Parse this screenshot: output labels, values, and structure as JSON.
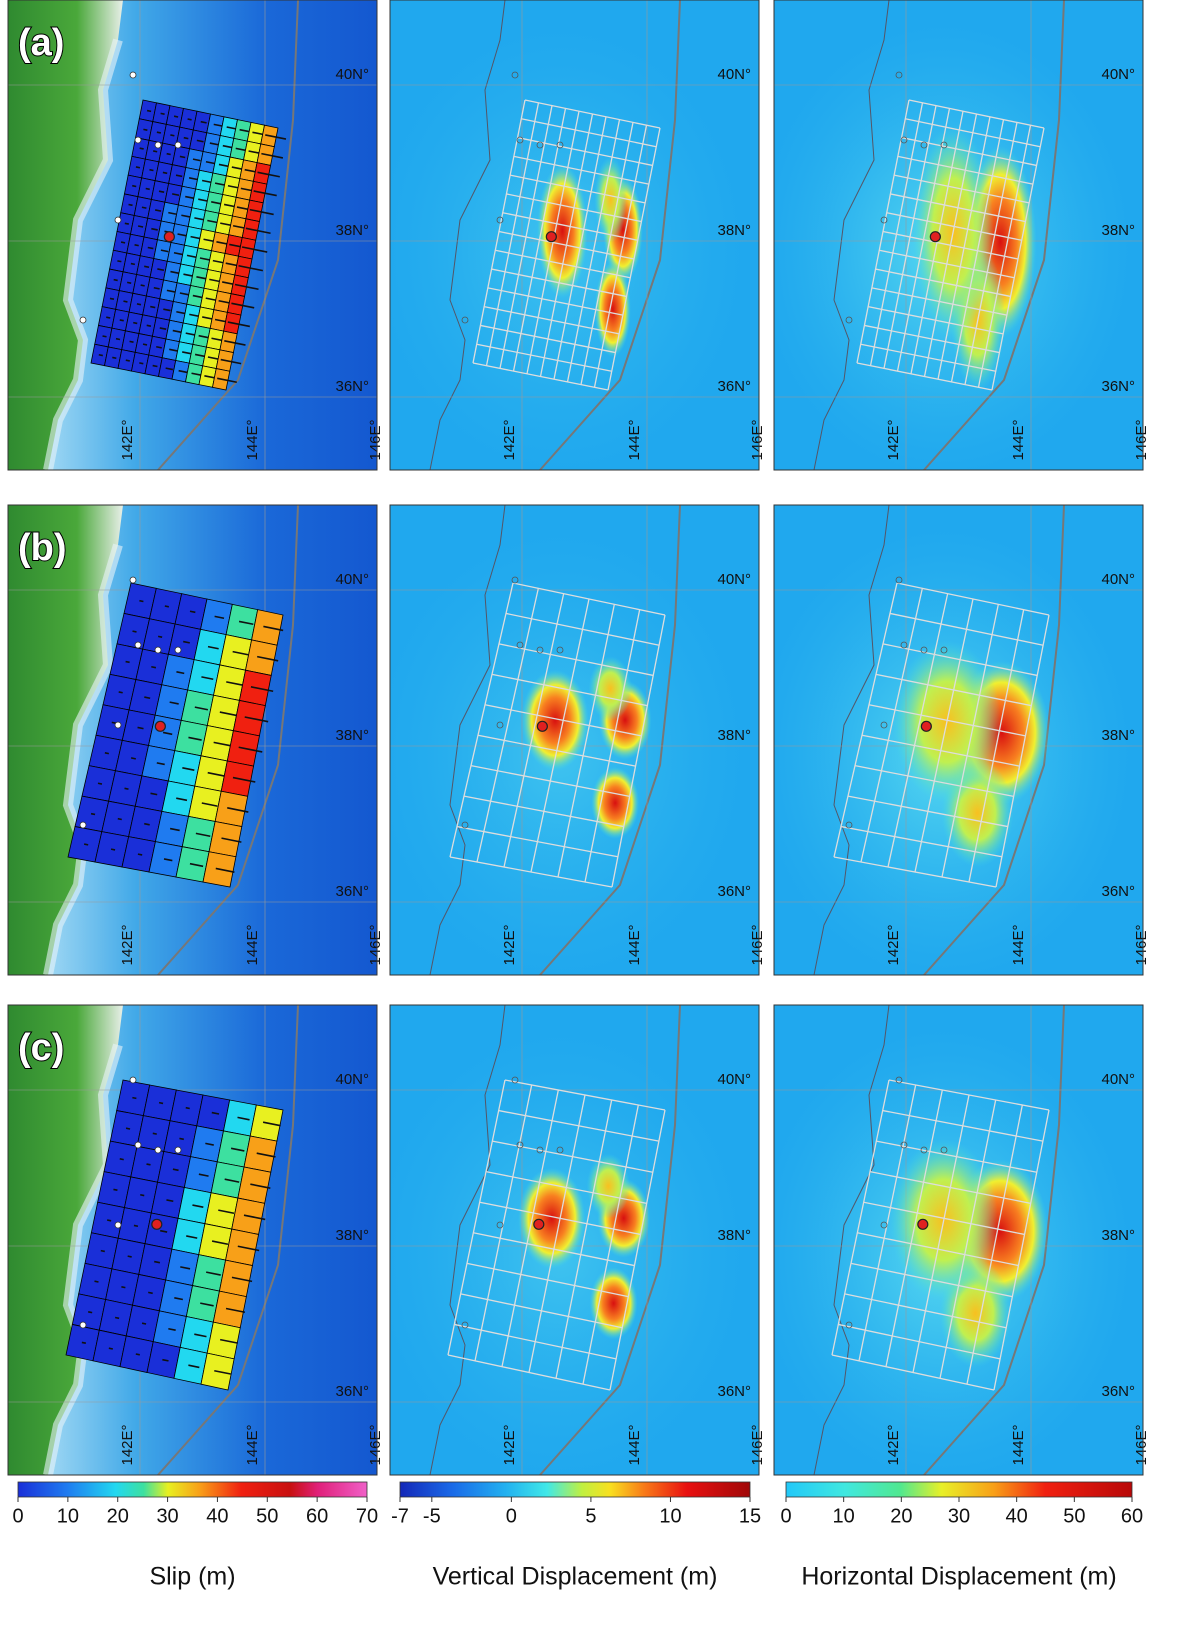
{
  "panels": {
    "row_labels": [
      "(a)",
      "(b)",
      "(c)"
    ],
    "lat_labels": [
      "40N°",
      "38N°",
      "36N°"
    ],
    "lon_labels": [
      "142E°",
      "144E°",
      "146E°"
    ]
  },
  "colorbars": [
    {
      "title": "Slip (m)",
      "range": [
        0,
        70
      ],
      "ticks": [
        0,
        10,
        20,
        30,
        40,
        50,
        60,
        70
      ]
    },
    {
      "title": "Vertical Displacement (m)",
      "range": [
        -7,
        15
      ],
      "ticks": [
        -7,
        -5,
        0,
        5,
        10,
        15
      ]
    },
    {
      "title": "Horizontal Displacement (m)",
      "range": [
        0,
        60
      ],
      "ticks": [
        0,
        10,
        20,
        30,
        40,
        50,
        60
      ]
    }
  ]
}
